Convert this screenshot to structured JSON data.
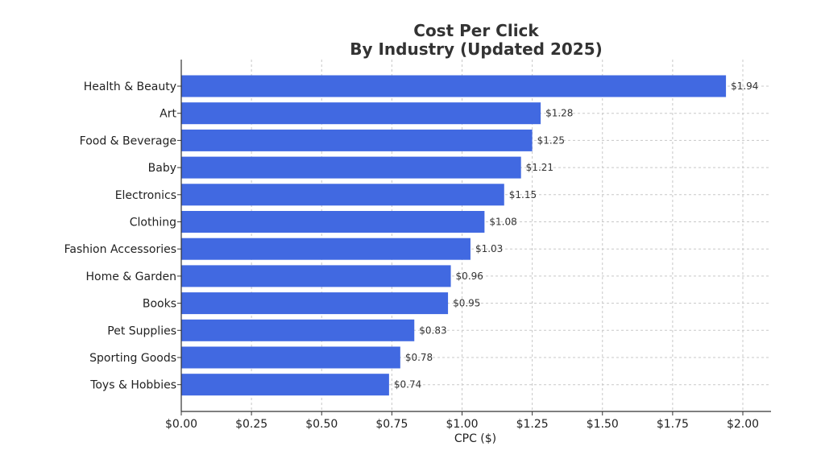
{
  "chart_data": {
    "type": "bar",
    "orientation": "horizontal",
    "title": "Cost Per Click",
    "subtitle": "By Industry (Updated 2025)",
    "xlabel": "CPC ($)",
    "ylabel": "",
    "xlim": [
      0,
      2.1
    ],
    "xticks": [
      0,
      0.25,
      0.5,
      0.75,
      1.0,
      1.25,
      1.5,
      1.75,
      2.0
    ],
    "xtick_labels": [
      "$0.00",
      "$0.25",
      "$0.50",
      "$0.75",
      "$1.00",
      "$1.25",
      "$1.50",
      "$1.75",
      "$2.00"
    ],
    "grid": true,
    "bar_color": "#4169E1",
    "categories": [
      "Health & Beauty",
      "Art",
      "Food & Beverage",
      "Baby",
      "Electronics",
      "Clothing",
      "Fashion Accessories",
      "Home & Garden",
      "Books",
      "Pet Supplies",
      "Sporting Goods",
      "Toys & Hobbies"
    ],
    "values": [
      1.94,
      1.28,
      1.25,
      1.21,
      1.15,
      1.08,
      1.03,
      0.96,
      0.95,
      0.83,
      0.78,
      0.74
    ],
    "value_labels": [
      "$1.94",
      "$1.28",
      "$1.25",
      "$1.21",
      "$1.15",
      "$1.08",
      "$1.03",
      "$0.96",
      "$0.95",
      "$0.83",
      "$0.78",
      "$0.74"
    ]
  }
}
